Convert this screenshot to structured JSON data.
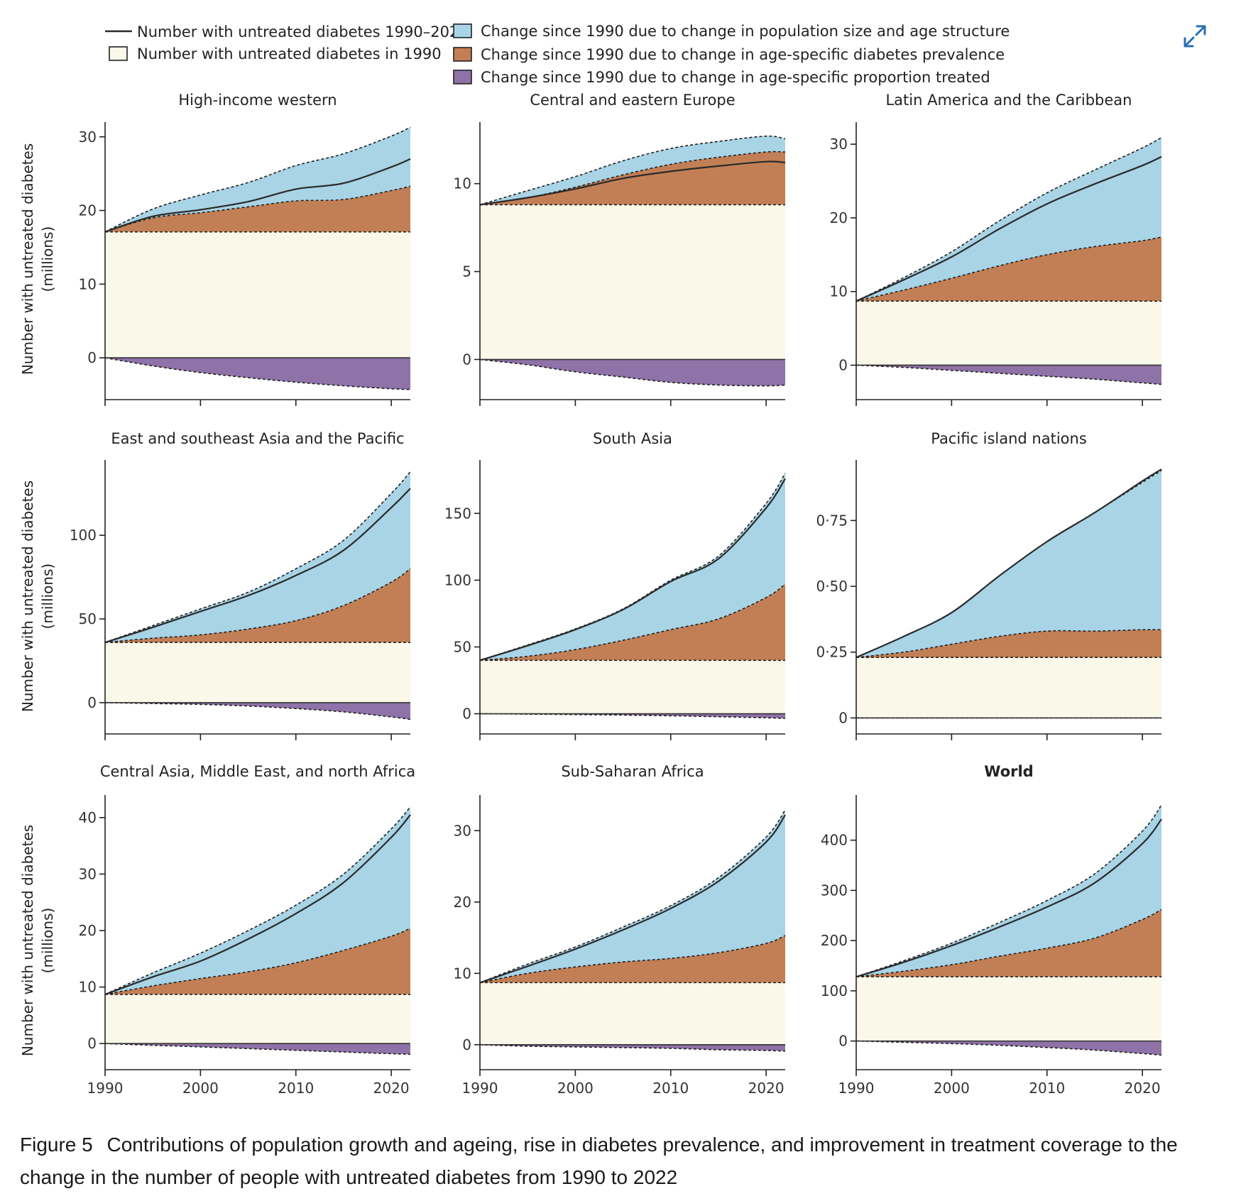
{
  "legend": {
    "line_label": "Number with untreated diabetes 1990–2022",
    "baseline_label": "Number with untreated diabetes in 1990",
    "population_label": "Change since 1990 due to change in population size and age structure",
    "prevalence_label": "Change since 1990 due to change in age-specific diabetes prevalence",
    "treated_label": "Change since 1990 due to change in age-specific proportion treated"
  },
  "colors": {
    "baseline": "#faf8e9",
    "population": "#a8d4e6",
    "prevalence": "#c27f55",
    "treated": "#8f72a8",
    "line": "#2a2a2a"
  },
  "icons": {
    "expand": "expand-arrows-icon"
  },
  "y_axis_label": "Number with untreated diabetes",
  "y_axis_unit": "(millions)",
  "caption": {
    "label": "Figure 5",
    "text": "Contributions of population growth and ageing, rise in diabetes prevalence, and improvement in treatment coverage to the change in the number of people with untreated diabetes from 1990 to 2022"
  },
  "chart_data": [
    {
      "type": "area",
      "title": "High-income western",
      "x": [
        1990,
        1995,
        2000,
        2005,
        2010,
        2015,
        2020,
        2022
      ],
      "ylim": [
        -5,
        32
      ],
      "yticks": [
        0,
        10,
        20,
        30
      ],
      "ytick_labels": [
        "0",
        "10",
        "20",
        "30"
      ],
      "xticks": [
        1990,
        2000,
        2010,
        2020
      ],
      "xtick_labels": [
        "",
        "",
        "",
        ""
      ],
      "baseline_1990": 17.1,
      "series": [
        {
          "name": "Change since 1990 due to change in age-specific proportion treated",
          "values": [
            0,
            -1.1,
            -2.0,
            -2.7,
            -3.3,
            -3.8,
            -4.2,
            -4.3
          ]
        },
        {
          "name": "Change since 1990 due to change in age-specific diabetes prevalence",
          "values": [
            0,
            1.9,
            2.6,
            3.4,
            4.2,
            4.4,
            5.6,
            6.2
          ]
        },
        {
          "name": "Change since 1990 due to change in population size and age structure",
          "values": [
            0,
            1.2,
            2.4,
            3.3,
            4.8,
            6.2,
            7.4,
            8.0
          ]
        },
        {
          "name": "Number with untreated diabetes 1990–2022",
          "values": [
            17.1,
            19.2,
            20.1,
            21.2,
            22.9,
            23.7,
            25.9,
            27.0
          ]
        }
      ]
    },
    {
      "type": "area",
      "title": "Central and eastern Europe",
      "x": [
        1990,
        1995,
        2000,
        2005,
        2010,
        2015,
        2020,
        2022
      ],
      "ylim": [
        -2,
        13.5
      ],
      "yticks": [
        0,
        5,
        10
      ],
      "ytick_labels": [
        "0",
        "5",
        "10"
      ],
      "xticks": [
        1990,
        2000,
        2010,
        2020
      ],
      "xtick_labels": [
        "",
        "",
        "",
        ""
      ],
      "baseline_1990": 8.8,
      "series": [
        {
          "name": "Change since 1990 due to change in age-specific proportion treated",
          "values": [
            0,
            -0.3,
            -0.7,
            -1.0,
            -1.3,
            -1.45,
            -1.5,
            -1.45
          ]
        },
        {
          "name": "Change since 1990 due to change in age-specific diabetes prevalence",
          "values": [
            0,
            0.4,
            1.0,
            1.7,
            2.3,
            2.7,
            3.0,
            3.0
          ]
        },
        {
          "name": "Change since 1990 due to change in population size and age structure",
          "values": [
            0,
            0.4,
            0.6,
            0.8,
            0.9,
            0.9,
            0.9,
            0.75
          ]
        },
        {
          "name": "Number with untreated diabetes 1990–2022",
          "values": [
            8.8,
            9.2,
            9.7,
            10.3,
            10.7,
            11.0,
            11.25,
            11.2
          ]
        }
      ]
    },
    {
      "type": "area",
      "title": "Latin America and the Caribbean",
      "x": [
        1990,
        1995,
        2000,
        2005,
        2010,
        2015,
        2020,
        2022
      ],
      "ylim": [
        -4,
        33
      ],
      "yticks": [
        0,
        10,
        20,
        30
      ],
      "ytick_labels": [
        "0",
        "10",
        "20",
        "30"
      ],
      "xticks": [
        1990,
        2000,
        2010,
        2020
      ],
      "xtick_labels": [
        "",
        "",
        "",
        ""
      ],
      "baseline_1990": 8.7,
      "series": [
        {
          "name": "Change since 1990 due to change in age-specific proportion treated",
          "values": [
            0,
            -0.3,
            -0.7,
            -1.1,
            -1.5,
            -1.9,
            -2.4,
            -2.6
          ]
        },
        {
          "name": "Change since 1990 due to change in age-specific diabetes prevalence",
          "values": [
            0,
            1.5,
            3.1,
            4.8,
            6.3,
            7.4,
            8.2,
            8.7
          ]
        },
        {
          "name": "Change since 1990 due to change in population size and age structure",
          "values": [
            0,
            1.7,
            3.6,
            6.1,
            8.4,
            10.4,
            12.6,
            13.5
          ]
        },
        {
          "name": "Number with untreated diabetes 1990–2022",
          "values": [
            8.7,
            11.6,
            14.7,
            18.5,
            21.9,
            24.6,
            27.1,
            28.3
          ]
        }
      ]
    },
    {
      "type": "area",
      "title": "East and southeast Asia and the Pacific",
      "x": [
        1990,
        1995,
        2000,
        2005,
        2010,
        2015,
        2020,
        2022
      ],
      "ylim": [
        -17,
        145
      ],
      "yticks": [
        0,
        50,
        100
      ],
      "ytick_labels": [
        "0",
        "50",
        "100"
      ],
      "xticks": [
        1990,
        2000,
        2010,
        2020
      ],
      "xtick_labels": [
        "",
        "",
        "",
        ""
      ],
      "baseline_1990": 36,
      "series": [
        {
          "name": "Change since 1990 due to change in age-specific proportion treated",
          "values": [
            0,
            -0.5,
            -1.0,
            -2.0,
            -3.5,
            -5.5,
            -8.5,
            -10
          ]
        },
        {
          "name": "Change since 1990 due to change in age-specific diabetes prevalence",
          "values": [
            0,
            2.5,
            4.5,
            8.0,
            13.0,
            22.0,
            36.0,
            44.0
          ]
        },
        {
          "name": "Change since 1990 due to change in population size and age structure",
          "values": [
            0,
            7.5,
            15.5,
            22.0,
            31.0,
            39.0,
            53.0,
            58.0
          ]
        },
        {
          "name": "Number with untreated diabetes 1990–2022",
          "values": [
            36,
            45,
            54.5,
            64,
            76,
            91,
            116.5,
            128
          ]
        }
      ]
    },
    {
      "type": "area",
      "title": "South Asia",
      "x": [
        1990,
        1995,
        2000,
        2005,
        2010,
        2015,
        2020,
        2022
      ],
      "ylim": [
        -13,
        190
      ],
      "yticks": [
        0,
        50,
        100,
        150
      ],
      "ytick_labels": [
        "0",
        "50",
        "100",
        "150"
      ],
      "xticks": [
        1990,
        2000,
        2010,
        2020
      ],
      "xtick_labels": [
        "",
        "",
        "",
        ""
      ],
      "baseline_1990": 40,
      "series": [
        {
          "name": "Change since 1990 due to change in age-specific proportion treated",
          "values": [
            0,
            -0.3,
            -0.6,
            -1.0,
            -1.5,
            -2.2,
            -3.0,
            -3.5
          ]
        },
        {
          "name": "Change since 1990 due to change in age-specific diabetes prevalence",
          "values": [
            0,
            3.0,
            8.0,
            15.0,
            23.0,
            31.0,
            47.0,
            57.0
          ]
        },
        {
          "name": "Change since 1990 due to change in population size and age structure",
          "values": [
            0,
            8.5,
            15.5,
            23.5,
            37.0,
            47.0,
            70.5,
            83.0
          ]
        },
        {
          "name": "Number with untreated diabetes 1990–2022",
          "values": [
            40,
            51,
            63,
            78,
            99,
            116,
            154,
            176
          ]
        }
      ]
    },
    {
      "type": "area",
      "title": "Pacific island nations",
      "x": [
        1990,
        1995,
        2000,
        2005,
        2010,
        2015,
        2020,
        2022
      ],
      "ylim": [
        -0.05,
        0.98
      ],
      "yticks": [
        0,
        0.25,
        0.5,
        0.75
      ],
      "ytick_labels": [
        "0",
        "0·25",
        "0·50",
        "0·75"
      ],
      "xticks": [
        1990,
        2000,
        2010,
        2020
      ],
      "xtick_labels": [
        "",
        "",
        "",
        ""
      ],
      "baseline_1990": 0.23,
      "series": [
        {
          "name": "Change since 1990 due to change in age-specific proportion treated",
          "values": [
            0,
            0,
            0,
            0,
            0,
            0,
            0,
            0
          ]
        },
        {
          "name": "Change since 1990 due to change in age-specific diabetes prevalence",
          "values": [
            0,
            0.02,
            0.05,
            0.08,
            0.1,
            0.1,
            0.105,
            0.105
          ]
        },
        {
          "name": "Change since 1990 due to change in population size and age structure",
          "values": [
            0,
            0.06,
            0.12,
            0.23,
            0.34,
            0.45,
            0.56,
            0.605
          ]
        },
        {
          "name": "Number with untreated diabetes 1990–2022",
          "values": [
            0.23,
            0.31,
            0.4,
            0.54,
            0.67,
            0.78,
            0.9,
            0.945
          ]
        }
      ]
    },
    {
      "type": "area",
      "title": "Central Asia, Middle East, and north Africa",
      "x": [
        1990,
        1995,
        2000,
        2005,
        2010,
        2015,
        2020,
        2022
      ],
      "ylim": [
        -4,
        44
      ],
      "yticks": [
        0,
        10,
        20,
        30,
        40
      ],
      "ytick_labels": [
        "0",
        "10",
        "20",
        "30",
        "40"
      ],
      "xticks": [
        1990,
        2000,
        2010,
        2020
      ],
      "xtick_labels": [
        "1990",
        "2000",
        "2010",
        "2020"
      ],
      "baseline_1990": 8.7,
      "series": [
        {
          "name": "Change since 1990 due to change in age-specific proportion treated",
          "values": [
            0,
            -0.3,
            -0.6,
            -0.9,
            -1.2,
            -1.5,
            -1.8,
            -1.9
          ]
        },
        {
          "name": "Change since 1990 due to change in age-specific diabetes prevalence",
          "values": [
            0,
            1.5,
            2.8,
            4.0,
            5.6,
            7.8,
            10.3,
            11.7
          ]
        },
        {
          "name": "Change since 1990 due to change in population size and age structure",
          "values": [
            0,
            2.3,
            4.5,
            7.3,
            10.2,
            13.5,
            19.0,
            21.5
          ]
        },
        {
          "name": "Number with untreated diabetes 1990–2022",
          "values": [
            8.7,
            11.8,
            14.6,
            18.5,
            23.0,
            28.5,
            36.5,
            40.5
          ]
        }
      ]
    },
    {
      "type": "area",
      "title": "Sub-Saharan Africa",
      "x": [
        1990,
        1995,
        2000,
        2005,
        2010,
        2015,
        2020,
        2022
      ],
      "ylim": [
        -3,
        35
      ],
      "yticks": [
        0,
        10,
        20,
        30
      ],
      "ytick_labels": [
        "0",
        "10",
        "20",
        "30"
      ],
      "xticks": [
        1990,
        2000,
        2010,
        2020
      ],
      "xtick_labels": [
        "1990",
        "2000",
        "2010",
        "2020"
      ],
      "baseline_1990": 8.7,
      "series": [
        {
          "name": "Change since 1990 due to change in age-specific proportion treated",
          "values": [
            0,
            -0.2,
            -0.3,
            -0.4,
            -0.5,
            -0.7,
            -0.8,
            -0.9
          ]
        },
        {
          "name": "Change since 1990 due to change in age-specific diabetes prevalence",
          "values": [
            0,
            1.3,
            2.2,
            2.9,
            3.4,
            4.2,
            5.5,
            6.6
          ]
        },
        {
          "name": "Change since 1990 due to change in population size and age structure",
          "values": [
            0,
            1.3,
            2.8,
            4.9,
            7.4,
            10.5,
            14.9,
            17.6
          ]
        },
        {
          "name": "Number with untreated diabetes 1990–2022",
          "values": [
            8.7,
            11.0,
            13.4,
            16.1,
            19.1,
            22.9,
            28.4,
            32.2
          ]
        }
      ]
    },
    {
      "type": "area",
      "title": "World",
      "x": [
        1990,
        1995,
        2000,
        2005,
        2010,
        2015,
        2020,
        2022
      ],
      "ylim": [
        -50,
        490
      ],
      "yticks": [
        0,
        100,
        200,
        300,
        400
      ],
      "ytick_labels": [
        "0",
        "100",
        "200",
        "300",
        "400"
      ],
      "xticks": [
        1990,
        2000,
        2010,
        2020
      ],
      "xtick_labels": [
        "1990",
        "2000",
        "2010",
        "2020"
      ],
      "baseline_1990": 128,
      "series": [
        {
          "name": "Change since 1990 due to change in age-specific proportion treated",
          "values": [
            0,
            -2.5,
            -5.0,
            -8.5,
            -13.0,
            -18.0,
            -25.0,
            -28.0
          ]
        },
        {
          "name": "Change since 1990 due to change in age-specific diabetes prevalence",
          "values": [
            0,
            11.0,
            24.0,
            41.0,
            57.0,
            77.0,
            114.0,
            134.0
          ]
        },
        {
          "name": "Change since 1990 due to change in population size and age structure",
          "values": [
            0,
            21.0,
            43.0,
            67.0,
            95.0,
            128.0,
            176.0,
            208.0
          ]
        },
        {
          "name": "Number with untreated diabetes 1990–2022",
          "values": [
            128,
            157,
            190,
            227,
            267,
            315,
            393,
            442
          ]
        }
      ]
    }
  ]
}
